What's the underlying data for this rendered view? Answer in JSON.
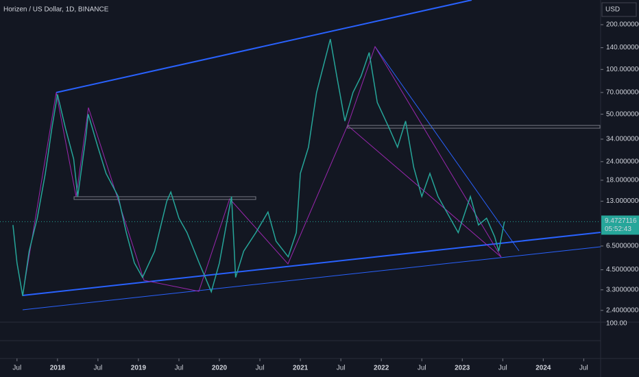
{
  "chart_data": {
    "type": "line",
    "title": "Horizen / US Dollar, 1D, BINANCE",
    "currency": "USD",
    "log_scale": true,
    "color": "#26a69a",
    "x": [
      2017.45,
      2017.5,
      2017.57,
      2017.65,
      2017.75,
      2017.85,
      2017.93,
      2018.0,
      2018.1,
      2018.2,
      2018.25,
      2018.35,
      2018.38,
      2018.5,
      2018.6,
      2018.75,
      2018.85,
      2018.95,
      2019.05,
      2019.2,
      2019.35,
      2019.4,
      2019.5,
      2019.6,
      2019.75,
      2019.9,
      2020.0,
      2020.1,
      2020.15,
      2020.2,
      2020.3,
      2020.45,
      2020.6,
      2020.7,
      2020.85,
      2020.95,
      2021.0,
      2021.1,
      2021.2,
      2021.37,
      2021.45,
      2021.55,
      2021.65,
      2021.75,
      2021.85,
      2021.95,
      2022.1,
      2022.2,
      2022.3,
      2022.4,
      2022.5,
      2022.6,
      2022.7,
      2022.85,
      2022.95,
      2023.1,
      2023.2,
      2023.3,
      2023.4,
      2023.45,
      2023.52
    ],
    "values": [
      9,
      5,
      3.0,
      6,
      10,
      20,
      40,
      68,
      40,
      25,
      14,
      35,
      50,
      30,
      20,
      14,
      8,
      5,
      4,
      6,
      13,
      15,
      10,
      8,
      5,
      3.2,
      5,
      10,
      14,
      4,
      6,
      8,
      11,
      7,
      5.5,
      8,
      20,
      30,
      70,
      160,
      90,
      45,
      70,
      90,
      130,
      60,
      40,
      30,
      45,
      22,
      14,
      20,
      14,
      10,
      8,
      14,
      9,
      10,
      7.5,
      6,
      9.4727116
    ],
    "last_price": {
      "value": 9.4727116,
      "label": "9.4727116"
    },
    "countdown": "05:52:43",
    "volume_tick": "100.00",
    "xlim": [
      2017.29,
      2024.7
    ],
    "ylim": [
      2.0,
      293
    ],
    "xticks": [
      {
        "value": 2017.5,
        "label": "Jul"
      },
      {
        "value": 2018,
        "label": "2018"
      },
      {
        "value": 2018.5,
        "label": "Jul"
      },
      {
        "value": 2019,
        "label": "2019"
      },
      {
        "value": 2019.5,
        "label": "Jul"
      },
      {
        "value": 2020,
        "label": "2020"
      },
      {
        "value": 2020.5,
        "label": "Jul"
      },
      {
        "value": 2021,
        "label": "2021"
      },
      {
        "value": 2021.5,
        "label": "Jul"
      },
      {
        "value": 2022,
        "label": "2022"
      },
      {
        "value": 2022.5,
        "label": "Jul"
      },
      {
        "value": 2023,
        "label": "2023"
      },
      {
        "value": 2023.5,
        "label": "Jul"
      },
      {
        "value": 2024,
        "label": "2024"
      },
      {
        "value": 2024.5,
        "label": "Jul"
      }
    ],
    "yticks": [
      {
        "value": 200,
        "label": "200.0000000"
      },
      {
        "value": 140,
        "label": "140.0000000"
      },
      {
        "value": 100,
        "label": "100.0000000"
      },
      {
        "value": 70,
        "label": "70.0000000"
      },
      {
        "value": 50,
        "label": "50.0000000"
      },
      {
        "value": 34,
        "label": "34.0000000"
      },
      {
        "value": 24,
        "label": "24.0000000"
      },
      {
        "value": 18,
        "label": "18.0000000"
      },
      {
        "value": 13,
        "label": "13.0000000"
      },
      {
        "value": 6.5,
        "label": "6.5000000"
      },
      {
        "value": 4.5,
        "label": "4.5000000"
      },
      {
        "value": 3.3,
        "label": "3.3000000"
      },
      {
        "value": 2.4,
        "label": "2.4000000"
      }
    ]
  }
}
